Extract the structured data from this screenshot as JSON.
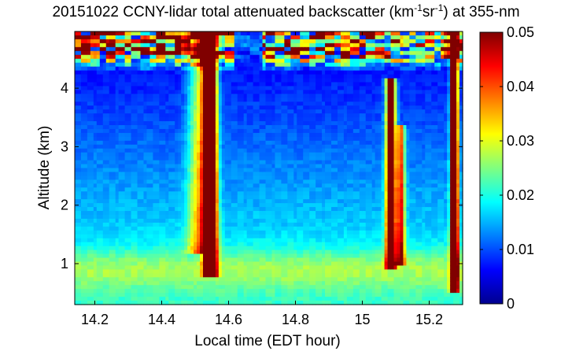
{
  "chart_data": {
    "type": "heatmap",
    "title": {
      "prefix": "20151022 CCNY-lidar total attenuated backscatter (km",
      "exp1": "-1",
      "middle": "sr",
      "exp2": "-1",
      "suffix": ") at 355-nm"
    },
    "xlabel": "Local time (EDT hour)",
    "ylabel": "Altitude (km)",
    "xlim": [
      14.14,
      15.3
    ],
    "ylim": [
      0.3,
      4.97
    ],
    "xticks": [
      "14.2",
      "14.4",
      "14.6",
      "14.8",
      "15",
      "15.2"
    ],
    "xtick_values": [
      14.2,
      14.4,
      14.6,
      14.8,
      15.0,
      15.2
    ],
    "yticks": [
      "1",
      "2",
      "3",
      "4"
    ],
    "ytick_values": [
      1,
      2,
      3,
      4
    ],
    "colorbar": {
      "min": 0,
      "max": 0.05,
      "ticks": [
        "0",
        "0.01",
        "0.02",
        "0.03",
        "0.04",
        "0.05"
      ],
      "tick_values": [
        0,
        0.01,
        0.02,
        0.03,
        0.04,
        0.05
      ],
      "colormap": "jet"
    },
    "features": [
      {
        "name": "boundary layer",
        "alt_km": [
          0.3,
          1.3
        ],
        "value": 0.026
      },
      {
        "name": "cloud plume 1",
        "time_h": [
          14.5,
          14.58
        ],
        "alt_km": [
          0.8,
          4.97
        ],
        "value": 0.05
      },
      {
        "name": "cloud plume 2",
        "time_h": [
          15.06,
          15.14
        ],
        "alt_km": [
          0.9,
          4.2
        ],
        "value": 0.045
      },
      {
        "name": "cloud plume 3",
        "time_h": [
          15.25,
          15.29
        ],
        "alt_km": [
          0.5,
          4.97
        ],
        "value": 0.05
      },
      {
        "name": "upper cloud layer",
        "alt_km": [
          4.3,
          4.97
        ],
        "value": 0.05
      }
    ]
  }
}
